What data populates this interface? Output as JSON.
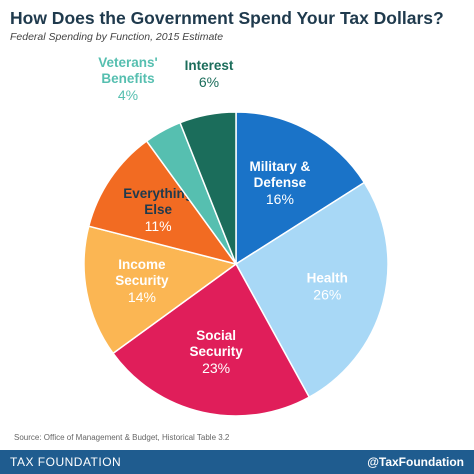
{
  "header": {
    "title": "How Does the Government Spend Your Tax Dollars?",
    "subtitle": "Federal Spending by Function, 2015 Estimate"
  },
  "chart_data": {
    "type": "pie",
    "title": "How Does the Government Spend Your Tax Dollars?",
    "subtitle": "Federal Spending by Function, 2015 Estimate",
    "slices": [
      {
        "lines": [
          "Military &",
          "Defense"
        ],
        "value": 16,
        "value_label": "16%",
        "color": "#1a73c8",
        "label_color": "#ffffff",
        "pct_color": "#ffffff"
      },
      {
        "lines": [
          "Health"
        ],
        "value": 26,
        "value_label": "26%",
        "color": "#a8d8f6",
        "label_color": "#ffffff",
        "pct_color": "#ffffff"
      },
      {
        "lines": [
          "Social",
          "Security"
        ],
        "value": 23,
        "value_label": "23%",
        "color": "#e01e5a",
        "label_color": "#ffffff",
        "pct_color": "#ffffff"
      },
      {
        "lines": [
          "Income",
          "Security"
        ],
        "value": 14,
        "value_label": "14%",
        "color": "#fbb653",
        "label_color": "#ffffff",
        "pct_color": "#ffffff"
      },
      {
        "lines": [
          "Everything",
          "Else"
        ],
        "value": 11,
        "value_label": "11%",
        "color": "#f26b22",
        "label_color": "#1f3a4d",
        "pct_color": "#ffffff"
      },
      {
        "lines": [
          "Veterans'",
          "Benefits"
        ],
        "value": 4,
        "value_label": "4%",
        "color": "#56bfb0",
        "label_color": "#56bfb0",
        "pct_color": "#56bfb0",
        "outside": true
      },
      {
        "lines": [
          "Interest"
        ],
        "value": 6,
        "value_label": "6%",
        "color": "#1b6d5b",
        "label_color": "#1b6d5b",
        "pct_color": "#1b6d5b",
        "outside": true
      }
    ]
  },
  "source": "Source: Office of Management & Budget, Historical Table 3.2",
  "footer": {
    "left": "TAX FOUNDATION",
    "right": "@TaxFoundation"
  },
  "colors": {
    "footer_bar": "#1f5c8f",
    "title": "#1f3a4d"
  }
}
